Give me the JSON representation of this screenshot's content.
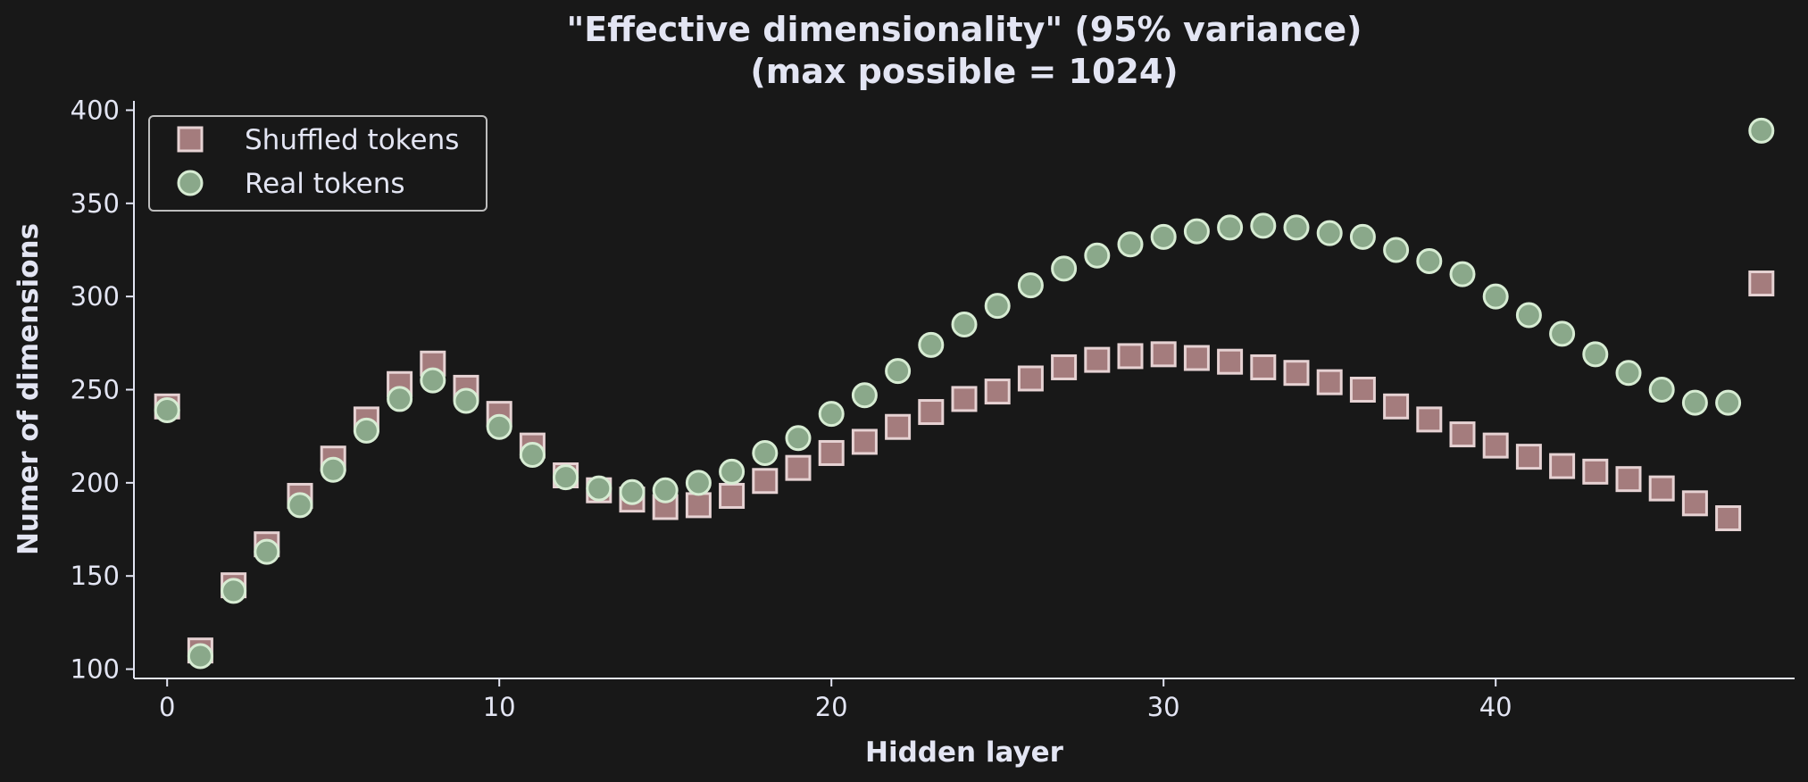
{
  "chart_data": {
    "type": "scatter",
    "title": [
      "\"Effective dimensionality\" (95% variance)",
      "(max possible = 1024)"
    ],
    "xlabel": "Hidden layer",
    "ylabel": "Numer of dimensions",
    "xlim": [
      -1,
      49
    ],
    "ylim": [
      95,
      405
    ],
    "xticks": [
      0,
      10,
      20,
      30,
      40
    ],
    "yticks": [
      100,
      150,
      200,
      250,
      300,
      350,
      400
    ],
    "grid": false,
    "legend": "top-left",
    "series": [
      {
        "name": "Shuffled tokens",
        "marker": "square",
        "color": "#a47c7d",
        "edge_color": "#e6d2d3",
        "x": [
          0,
          1,
          2,
          3,
          4,
          5,
          6,
          7,
          8,
          9,
          10,
          11,
          12,
          13,
          14,
          15,
          16,
          17,
          18,
          19,
          20,
          21,
          22,
          23,
          24,
          25,
          26,
          27,
          28,
          29,
          30,
          31,
          32,
          33,
          34,
          35,
          36,
          37,
          38,
          39,
          40,
          41,
          42,
          43,
          44,
          45,
          46,
          47,
          48
        ],
        "values": [
          241,
          110,
          145,
          167,
          193,
          213,
          234,
          253,
          264,
          251,
          237,
          220,
          204,
          196,
          191,
          187,
          188,
          193,
          201,
          208,
          216,
          222,
          230,
          238,
          245,
          249,
          256,
          262,
          266,
          268,
          269,
          267,
          265,
          262,
          259,
          254,
          250,
          241,
          234,
          226,
          220,
          214,
          209,
          206,
          202,
          197,
          189,
          181,
          307
        ]
      },
      {
        "name": "Real tokens",
        "marker": "circle",
        "color": "#8aa88a",
        "edge_color": "#d7ecd3",
        "x": [
          0,
          1,
          2,
          3,
          4,
          5,
          6,
          7,
          8,
          9,
          10,
          11,
          12,
          13,
          14,
          15,
          16,
          17,
          18,
          19,
          20,
          21,
          22,
          23,
          24,
          25,
          26,
          27,
          28,
          29,
          30,
          31,
          32,
          33,
          34,
          35,
          36,
          37,
          38,
          39,
          40,
          41,
          42,
          43,
          44,
          45,
          46,
          47,
          48
        ],
        "values": [
          239,
          107,
          142,
          163,
          188,
          207,
          228,
          245,
          255,
          244,
          230,
          215,
          203,
          197,
          195,
          196,
          200,
          206,
          216,
          224,
          237,
          247,
          260,
          274,
          285,
          295,
          306,
          315,
          322,
          328,
          332,
          335,
          337,
          338,
          337,
          334,
          332,
          325,
          319,
          312,
          300,
          290,
          280,
          269,
          259,
          250,
          243,
          243,
          389
        ]
      }
    ]
  },
  "colors": {
    "background": "#181818",
    "foreground": "#e3e5f3"
  }
}
